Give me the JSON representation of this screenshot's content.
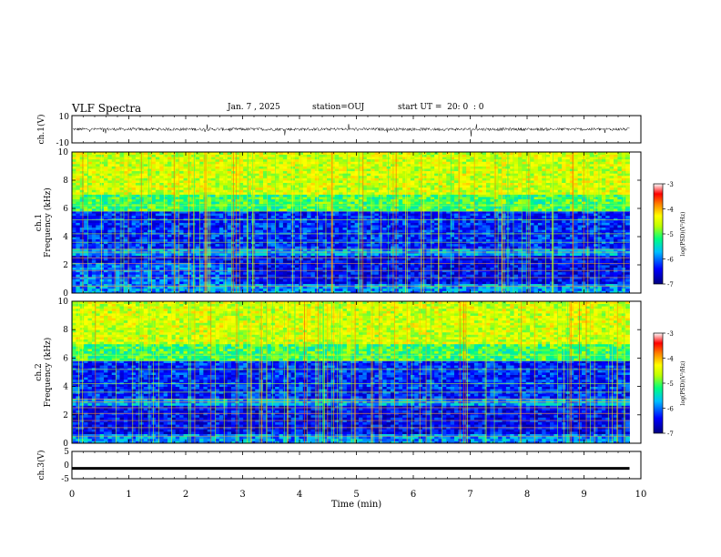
{
  "header": {
    "title": "VLF Spectra",
    "date": "Jan. 7 , 2025",
    "station": "station=OUJ",
    "start": "start UT =  20: 0  : 0"
  },
  "chart_data": [
    {
      "type": "line",
      "name": "ch1-waveform",
      "ylabel": "ch.1(V)",
      "ylim": [
        -10,
        10
      ],
      "yticks": [
        "10",
        "-10"
      ],
      "xlim": [
        0,
        10
      ],
      "description_values": {
        "baseline": 0,
        "noise_amplitude": 2
      },
      "color": "#000000"
    },
    {
      "type": "heatmap",
      "name": "ch1-spectrogram",
      "ylabel_top": "ch.1",
      "ylabel": "Frequency (kHz)",
      "ylim": [
        0,
        10
      ],
      "yticks": [
        "0",
        "2",
        "4",
        "6",
        "8",
        "10"
      ],
      "xlim": [
        0,
        9.8
      ],
      "colorbar": {
        "label": "log(PSD)(V²/Hz)",
        "range": [
          -7,
          -3
        ],
        "ticks": [
          "-3",
          "-4",
          "-5",
          "-6",
          "-7"
        ],
        "colormap": [
          "#00007f",
          "#0000ff",
          "#00bfff",
          "#00ff7f",
          "#bfff00",
          "#ffff00",
          "#ff7f00",
          "#ff0000",
          "#ffffff"
        ]
      }
    },
    {
      "type": "heatmap",
      "name": "ch2-spectrogram",
      "ylabel_top": "ch.2",
      "ylabel": "Frequency (kHz)",
      "ylim": [
        0,
        10
      ],
      "yticks": [
        "0",
        "2",
        "4",
        "6",
        "8",
        "10"
      ],
      "xlim": [
        0,
        9.8
      ],
      "colorbar": {
        "label": "log(PSD)(V²/Hz)",
        "range": [
          -7,
          -3
        ],
        "ticks": [
          "-3",
          "-4",
          "-5",
          "-6",
          "-7"
        ]
      }
    },
    {
      "type": "line",
      "name": "ch3-waveform",
      "ylabel": "ch.3(V)",
      "ylim": [
        -5,
        5
      ],
      "yticks": [
        "5",
        "0",
        "-5"
      ],
      "xlim": [
        0,
        10
      ],
      "description_values": {
        "level": -1.2
      },
      "color": "#000000"
    }
  ],
  "xaxis": {
    "label": "Time (min)",
    "ticks": [
      "0",
      "1",
      "2",
      "3",
      "4",
      "5",
      "6",
      "7",
      "8",
      "9",
      "10"
    ]
  }
}
